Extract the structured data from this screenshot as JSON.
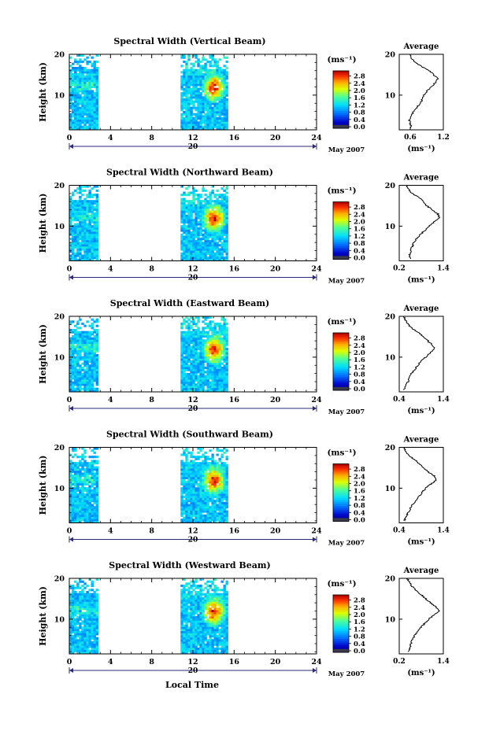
{
  "figure": {
    "xlabel": "Local Time",
    "date_label": "May 2007",
    "cursor_label": "20",
    "unit_label": "(ms⁻¹)"
  },
  "chart_data": [
    {
      "type": "heatmap",
      "title": "Spectral Width (Vertical Beam)",
      "ylabel": "Height (km)",
      "xlabel": "",
      "x_ticks": [
        0,
        4,
        8,
        12,
        16,
        20,
        24
      ],
      "xlim": [
        0,
        24
      ],
      "y_ticks": [
        10,
        20
      ],
      "ylim": [
        1.5,
        20
      ],
      "colorbar_ticks": [
        "0.0",
        "0.4",
        "0.8",
        "1.2",
        "1.6",
        "2.0",
        "2.4",
        "2.8"
      ],
      "colorbar_range": [
        0,
        3.0
      ],
      "data_segments": [
        {
          "x_start": 0,
          "x_end": 2.8
        },
        {
          "x_start": 10.8,
          "x_end": 15.4
        }
      ],
      "cursor_date": "20",
      "date_label": "May 2007",
      "profile": {
        "title": "Average",
        "xlabel": "(ms⁻¹)",
        "x_ticks": [
          "0.6",
          "1.2"
        ],
        "xlim": [
          0.4,
          1.2
        ],
        "y_ticks": [
          10,
          20
        ],
        "ylim": [
          1.5,
          20
        ],
        "points": [
          [
            0.62,
            2
          ],
          [
            0.6,
            3
          ],
          [
            0.58,
            4
          ],
          [
            0.62,
            5
          ],
          [
            0.66,
            6
          ],
          [
            0.72,
            7
          ],
          [
            0.78,
            8
          ],
          [
            0.82,
            9
          ],
          [
            0.85,
            10
          ],
          [
            0.9,
            11
          ],
          [
            0.98,
            12
          ],
          [
            1.05,
            13
          ],
          [
            1.1,
            14
          ],
          [
            1.02,
            15
          ],
          [
            0.95,
            16
          ],
          [
            0.8,
            17
          ],
          [
            0.7,
            18
          ],
          [
            0.62,
            19
          ],
          [
            0.6,
            20
          ]
        ]
      }
    },
    {
      "type": "heatmap",
      "title": "Spectral Width (Northward Beam)",
      "ylabel": "Height (km)",
      "xlabel": "",
      "x_ticks": [
        0,
        4,
        8,
        12,
        16,
        20,
        24
      ],
      "xlim": [
        0,
        24
      ],
      "y_ticks": [
        10,
        20
      ],
      "ylim": [
        1.5,
        20
      ],
      "colorbar_ticks": [
        "0.0",
        "0.4",
        "0.8",
        "1.2",
        "1.6",
        "2.0",
        "2.4",
        "2.8"
      ],
      "colorbar_range": [
        0,
        3.0
      ],
      "data_segments": [
        {
          "x_start": 0,
          "x_end": 2.8
        },
        {
          "x_start": 10.8,
          "x_end": 15.4
        }
      ],
      "cursor_date": "20",
      "date_label": "May 2007",
      "profile": {
        "title": "Average",
        "xlabel": "(ms⁻¹)",
        "x_ticks": [
          "0.2",
          "1.4"
        ],
        "xlim": [
          0.2,
          1.4
        ],
        "y_ticks": [
          10,
          20
        ],
        "ylim": [
          1.5,
          20
        ],
        "points": [
          [
            0.5,
            2
          ],
          [
            0.48,
            3
          ],
          [
            0.52,
            4
          ],
          [
            0.55,
            5
          ],
          [
            0.6,
            6
          ],
          [
            0.68,
            7
          ],
          [
            0.78,
            8
          ],
          [
            0.9,
            9
          ],
          [
            1.0,
            10
          ],
          [
            1.15,
            11
          ],
          [
            1.3,
            12
          ],
          [
            1.25,
            13
          ],
          [
            1.1,
            14
          ],
          [
            0.95,
            15
          ],
          [
            0.85,
            16
          ],
          [
            0.75,
            17
          ],
          [
            0.55,
            18
          ],
          [
            0.45,
            19
          ],
          [
            0.4,
            20
          ]
        ]
      }
    },
    {
      "type": "heatmap",
      "title": "Spectral Width (Eastward Beam)",
      "ylabel": "Height (km)",
      "xlabel": "",
      "x_ticks": [
        0,
        4,
        8,
        12,
        16,
        20,
        24
      ],
      "xlim": [
        0,
        24
      ],
      "y_ticks": [
        10,
        20
      ],
      "ylim": [
        1.5,
        20
      ],
      "colorbar_ticks": [
        "0.0",
        "0.4",
        "0.8",
        "1.2",
        "1.6",
        "2.0",
        "2.4",
        "2.8"
      ],
      "colorbar_range": [
        0,
        3.0
      ],
      "data_segments": [
        {
          "x_start": 0,
          "x_end": 2.8
        },
        {
          "x_start": 10.8,
          "x_end": 15.4
        }
      ],
      "cursor_date": "20",
      "date_label": "May 2007",
      "profile": {
        "title": "Average",
        "xlabel": "(ms⁻¹)",
        "x_ticks": [
          "0.4",
          "1.4"
        ],
        "xlim": [
          0.4,
          1.4
        ],
        "y_ticks": [
          10,
          20
        ],
        "ylim": [
          1.5,
          20
        ],
        "points": [
          [
            0.5,
            2
          ],
          [
            0.55,
            3
          ],
          [
            0.6,
            4
          ],
          [
            0.62,
            5
          ],
          [
            0.68,
            6
          ],
          [
            0.75,
            7
          ],
          [
            0.82,
            8
          ],
          [
            0.9,
            9
          ],
          [
            1.0,
            10
          ],
          [
            1.1,
            11
          ],
          [
            1.2,
            12
          ],
          [
            1.15,
            13
          ],
          [
            1.05,
            14
          ],
          [
            0.95,
            15
          ],
          [
            0.85,
            16
          ],
          [
            0.7,
            17
          ],
          [
            0.6,
            18
          ],
          [
            0.55,
            19
          ],
          [
            0.5,
            20
          ]
        ]
      }
    },
    {
      "type": "heatmap",
      "title": "Spectral Width (Southward Beam)",
      "ylabel": "Height (km)",
      "xlabel": "",
      "x_ticks": [
        0,
        4,
        8,
        12,
        16,
        20,
        24
      ],
      "xlim": [
        0,
        24
      ],
      "y_ticks": [
        10,
        20
      ],
      "ylim": [
        1.5,
        20
      ],
      "colorbar_ticks": [
        "0.0",
        "0.4",
        "0.8",
        "1.2",
        "1.6",
        "2.0",
        "2.4",
        "2.8"
      ],
      "colorbar_range": [
        0,
        3.0
      ],
      "data_segments": [
        {
          "x_start": 0,
          "x_end": 2.8
        },
        {
          "x_start": 10.8,
          "x_end": 15.4
        }
      ],
      "cursor_date": "20",
      "date_label": "May 2007",
      "profile": {
        "title": "Average",
        "xlabel": "(ms⁻¹)",
        "x_ticks": [
          "0.4",
          "1.4"
        ],
        "xlim": [
          0.4,
          1.4
        ],
        "y_ticks": [
          10,
          20
        ],
        "ylim": [
          1.5,
          20
        ],
        "points": [
          [
            0.52,
            2
          ],
          [
            0.55,
            3
          ],
          [
            0.6,
            4
          ],
          [
            0.65,
            5
          ],
          [
            0.7,
            6
          ],
          [
            0.78,
            7
          ],
          [
            0.85,
            8
          ],
          [
            0.92,
            9
          ],
          [
            1.0,
            10
          ],
          [
            1.12,
            11
          ],
          [
            1.25,
            12
          ],
          [
            1.2,
            13
          ],
          [
            1.05,
            14
          ],
          [
            0.95,
            15
          ],
          [
            0.85,
            16
          ],
          [
            0.75,
            17
          ],
          [
            0.62,
            18
          ],
          [
            0.55,
            19
          ],
          [
            0.5,
            20
          ]
        ]
      }
    },
    {
      "type": "heatmap",
      "title": "Spectral Width (Westward Beam)",
      "ylabel": "Height (km)",
      "xlabel": "Local Time",
      "x_ticks": [
        0,
        4,
        8,
        12,
        16,
        20,
        24
      ],
      "xlim": [
        0,
        24
      ],
      "y_ticks": [
        10,
        20
      ],
      "ylim": [
        1.5,
        20
      ],
      "colorbar_ticks": [
        "0.0",
        "0.4",
        "0.8",
        "1.2",
        "1.6",
        "2.0",
        "2.4",
        "2.8"
      ],
      "colorbar_range": [
        0,
        3.0
      ],
      "data_segments": [
        {
          "x_start": 0,
          "x_end": 2.8
        },
        {
          "x_start": 10.8,
          "x_end": 15.4
        }
      ],
      "cursor_date": "20",
      "date_label": "May 2007",
      "profile": {
        "title": "Average",
        "xlabel": "(ms⁻¹)",
        "x_ticks": [
          "0.2",
          "1.4"
        ],
        "xlim": [
          0.2,
          1.4
        ],
        "y_ticks": [
          10,
          20
        ],
        "ylim": [
          1.5,
          20
        ],
        "points": [
          [
            0.45,
            2
          ],
          [
            0.48,
            3
          ],
          [
            0.52,
            4
          ],
          [
            0.55,
            5
          ],
          [
            0.62,
            6
          ],
          [
            0.7,
            7
          ],
          [
            0.8,
            8
          ],
          [
            0.9,
            9
          ],
          [
            1.0,
            10
          ],
          [
            1.15,
            11
          ],
          [
            1.28,
            12
          ],
          [
            1.2,
            13
          ],
          [
            1.05,
            14
          ],
          [
            0.92,
            15
          ],
          [
            0.8,
            16
          ],
          [
            0.65,
            17
          ],
          [
            0.55,
            18
          ],
          [
            0.48,
            19
          ],
          [
            0.42,
            20
          ]
        ]
      }
    }
  ]
}
